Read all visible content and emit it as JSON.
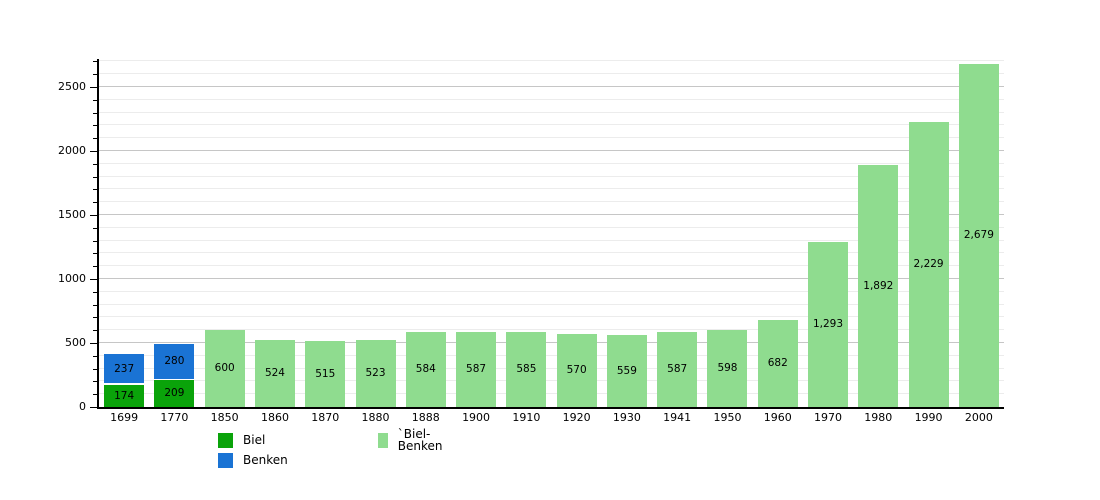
{
  "chart_data": {
    "type": "bar",
    "title": "",
    "xlabel": "",
    "ylabel": "",
    "categories": [
      "1699",
      "1770",
      "1850",
      "1860",
      "1870",
      "1880",
      "1888",
      "1900",
      "1910",
      "1920",
      "1930",
      "1941",
      "1950",
      "1960",
      "1970",
      "1980",
      "1990",
      "2000"
    ],
    "series": [
      {
        "name": "Biel",
        "color": "#0aa30a",
        "stack": true,
        "values": [
          174,
          209,
          null,
          null,
          null,
          null,
          null,
          null,
          null,
          null,
          null,
          null,
          null,
          null,
          null,
          null,
          null,
          null
        ]
      },
      {
        "name": "Benken",
        "color": "#1a73d4",
        "stack": true,
        "values": [
          237,
          280,
          null,
          null,
          null,
          null,
          null,
          null,
          null,
          null,
          null,
          null,
          null,
          null,
          null,
          null,
          null,
          null
        ]
      },
      {
        "name": "Biel-Benken",
        "color": "#8fdc8f",
        "stack": false,
        "values": [
          null,
          null,
          600,
          524,
          515,
          523,
          584,
          587,
          585,
          570,
          559,
          587,
          598,
          682,
          1293,
          1892,
          2229,
          2679
        ]
      }
    ],
    "ylim": [
      0,
      2719
    ],
    "yticks_major": [
      0,
      500,
      1000,
      1500,
      2000,
      2500
    ],
    "ytick_minor_step": 100,
    "grid": true,
    "legend_position": "bottom"
  },
  "legend": {
    "items": [
      {
        "label": "Biel",
        "color": "#0aa30a"
      },
      {
        "label": "Benken",
        "color": "#1a73d4"
      },
      {
        "label": "`Biel-Benken",
        "color": "#8fdc8f"
      }
    ]
  },
  "colors": {
    "background": "#ffffff",
    "axis": "#000000",
    "grid_major": "#c6c6c6",
    "grid_minor": "#ececec",
    "label_text": "#000000"
  }
}
